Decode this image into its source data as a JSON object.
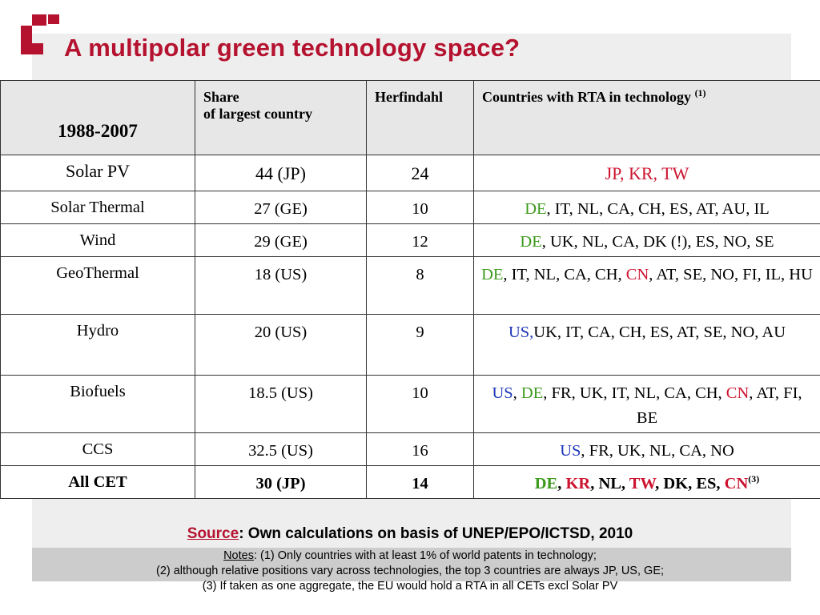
{
  "slide": {
    "title": "A multipolar green technology space?",
    "logo_icon": "red-square-corner-logo",
    "colors": {
      "title": "#b5122f",
      "highlight_green": "#3c9a1c",
      "highlight_red": "#cc1430",
      "highlight_blue": "#1d36b8"
    }
  },
  "table": {
    "headers": {
      "period": "1988-2007",
      "share_line1": "Share",
      "share_line2": "of largest country",
      "herfindahl": "Herfindahl",
      "countries": "Countries with RTA in technology ",
      "countries_note": "(1)"
    },
    "rows": [
      {
        "tech": "Solar PV",
        "share": "44 (JP)",
        "herfindahl": "24",
        "countries": [
          {
            "text": "JP, KR, TW",
            "color": "red"
          }
        ]
      },
      {
        "tech": "Solar Thermal",
        "share": "27 (GE)",
        "herfindahl": "10",
        "countries": [
          {
            "text": "DE",
            "color": "green"
          },
          {
            "text": ", IT, NL, CA, CH, ES, AT, AU, IL",
            "color": ""
          }
        ]
      },
      {
        "tech": "Wind",
        "share": "29 (GE)",
        "herfindahl": "12",
        "countries": [
          {
            "text": "DE",
            "color": "green"
          },
          {
            "text": ", UK, NL, CA, DK (!), ES, NO, SE",
            "color": ""
          }
        ]
      },
      {
        "tech": "GeoThermal",
        "share": "18 (US)",
        "herfindahl": "8",
        "countries": [
          {
            "text": "DE",
            "color": "green"
          },
          {
            "text": ", IT, NL, CA, CH, ",
            "color": ""
          },
          {
            "text": "CN",
            "color": "red"
          },
          {
            "text": ", AT, SE, NO, FI, IL, HU",
            "color": ""
          }
        ]
      },
      {
        "tech": "Hydro",
        "share": "20 (US)",
        "herfindahl": "9",
        "countries": [
          {
            "text": "US,",
            "color": "blue"
          },
          {
            "text": "UK, IT, CA, CH, ES, AT, SE, NO, AU",
            "color": ""
          }
        ]
      },
      {
        "tech": "Biofuels",
        "share": "18.5 (US)",
        "herfindahl": "10",
        "countries": [
          {
            "text": "US",
            "color": "blue"
          },
          {
            "text": ", ",
            "color": ""
          },
          {
            "text": "DE",
            "color": "green"
          },
          {
            "text": ", FR, UK, IT, NL, CA, CH, ",
            "color": ""
          },
          {
            "text": "CN",
            "color": "red"
          },
          {
            "text": ", AT, FI, BE",
            "color": ""
          }
        ]
      },
      {
        "tech": "CCS",
        "share": "32.5 (US)",
        "herfindahl": "16",
        "countries": [
          {
            "text": "US",
            "color": "blue"
          },
          {
            "text": ", FR, UK, NL, CA, NO",
            "color": ""
          }
        ]
      },
      {
        "tech": "All CET",
        "share": "30 (JP)",
        "herfindahl": "14",
        "countries": [
          {
            "text": "DE",
            "color": "green"
          },
          {
            "text": ", ",
            "color": ""
          },
          {
            "text": "KR",
            "color": "red"
          },
          {
            "text": ", NL, ",
            "color": ""
          },
          {
            "text": "TW",
            "color": "red"
          },
          {
            "text": ", DK, ES, ",
            "color": ""
          },
          {
            "text": "CN",
            "color": "red"
          },
          {
            "text": "(3)",
            "color": "",
            "sup": true
          }
        ]
      }
    ]
  },
  "source": {
    "label": "Source",
    "text": ":  Own calculations on basis of UNEP/EPO/ICTSD, 2010"
  },
  "notes": {
    "label": "Notes",
    "line1": ": (1) Only countries with at least 1% of world patents in technology;",
    "line2": "(2) although relative positions vary across technologies, the top 3 countries are always JP, US, GE;",
    "line3": "(3) If taken as one aggregate, the EU would hold a RTA in all CETs excl Solar PV"
  }
}
